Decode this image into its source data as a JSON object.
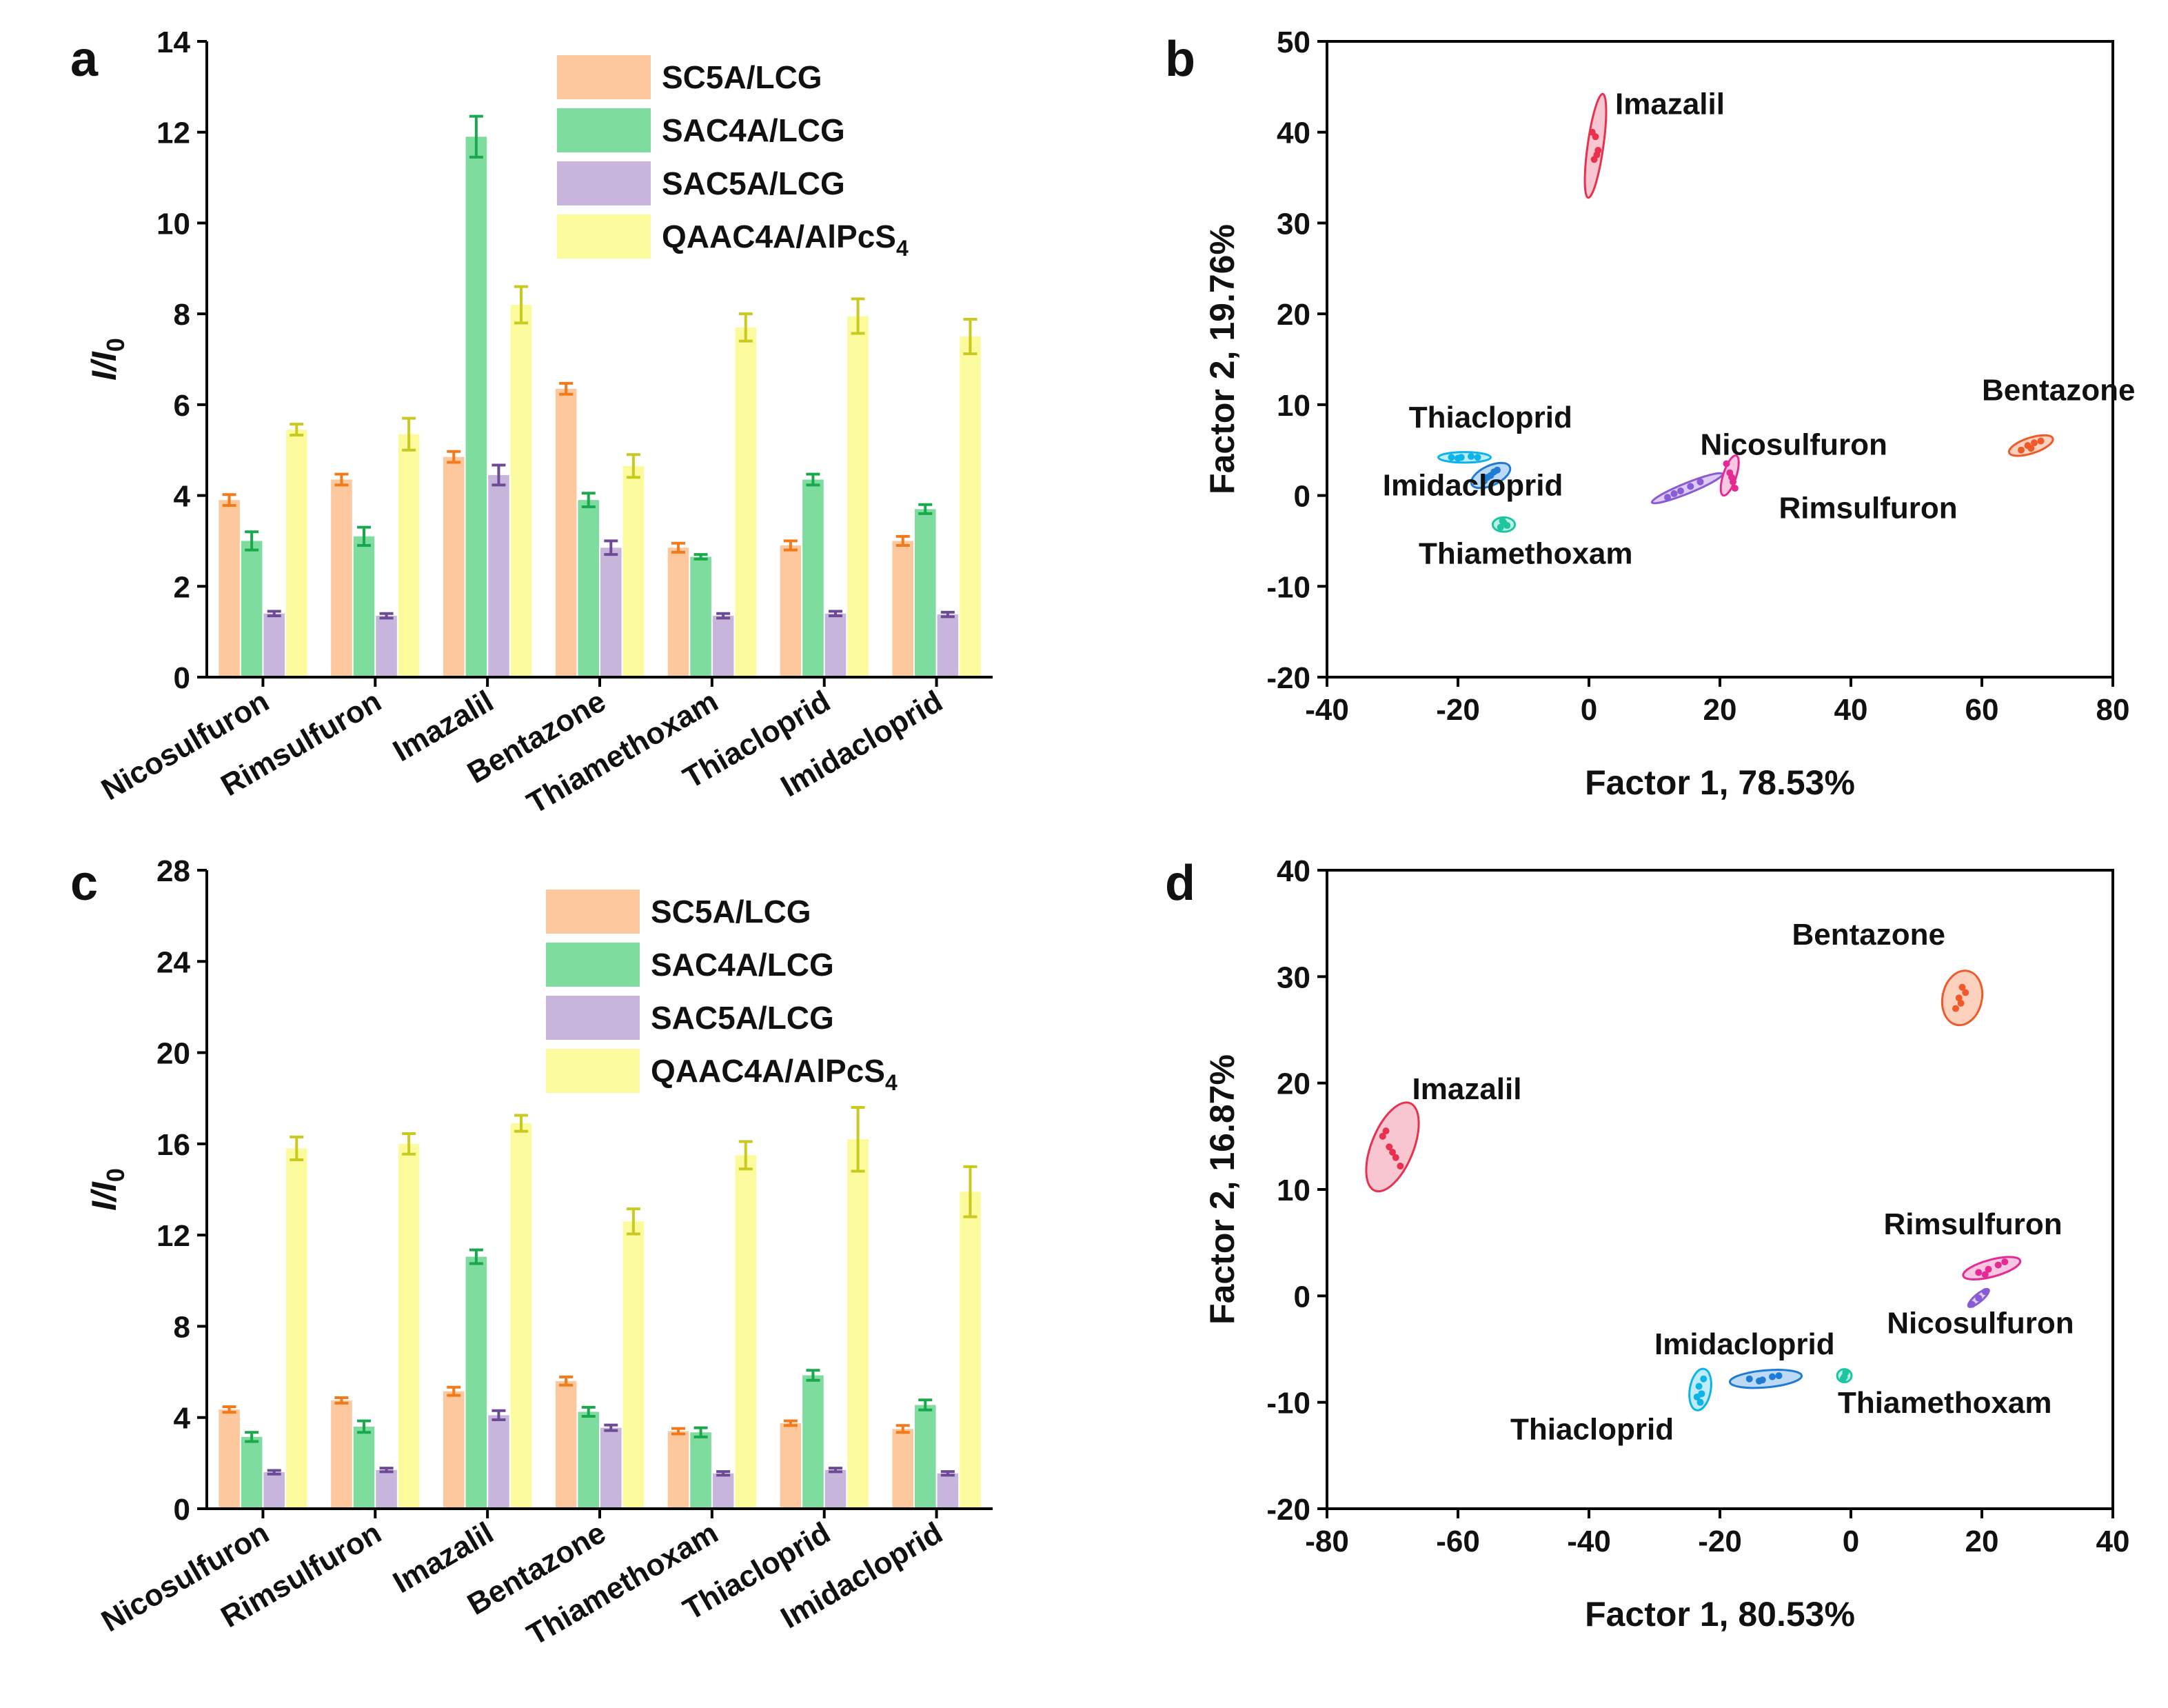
{
  "chart_data": [
    {
      "panel": "a",
      "type": "bar",
      "title": "",
      "xlabel": "",
      "ylabel": "I/I0",
      "ylim": [
        0,
        14
      ],
      "yticks": [
        0,
        2,
        4,
        6,
        8,
        10,
        12,
        14
      ],
      "categories": [
        "Nicosulfuron",
        "Rimsulfuron",
        "Imazalil",
        "Bentazone",
        "Thiamethoxam",
        "Thiacloprid",
        "Imidacloprid"
      ],
      "legend_position": "top-right",
      "series": [
        {
          "name": "SC5A/LCG",
          "sub": "",
          "color": "#FDC89D",
          "err_color": "#F27A1A",
          "values": [
            3.9,
            4.35,
            4.85,
            6.35,
            2.85,
            2.9,
            3.0
          ],
          "errors": [
            0.12,
            0.12,
            0.12,
            0.12,
            0.1,
            0.1,
            0.1
          ]
        },
        {
          "name": "SAC4A/LCG",
          "sub": "",
          "color": "#7EDC9F",
          "err_color": "#1AA84C",
          "values": [
            3.0,
            3.1,
            11.9,
            3.9,
            2.65,
            4.35,
            3.7
          ],
          "errors": [
            0.2,
            0.2,
            0.45,
            0.15,
            0.05,
            0.12,
            0.1
          ]
        },
        {
          "name": "SAC5A/LCG",
          "sub": "",
          "color": "#C8B5DC",
          "err_color": "#6D4A95",
          "values": [
            1.4,
            1.35,
            4.45,
            2.85,
            1.35,
            1.4,
            1.38
          ],
          "errors": [
            0.05,
            0.05,
            0.22,
            0.15,
            0.05,
            0.05,
            0.05
          ]
        },
        {
          "name": "QAAC4A/AlPcS",
          "sub": "4",
          "color": "#FBFB9E",
          "err_color": "#C9C91E",
          "values": [
            5.45,
            5.35,
            8.2,
            4.65,
            7.7,
            7.95,
            7.5
          ],
          "errors": [
            0.12,
            0.35,
            0.4,
            0.25,
            0.3,
            0.38,
            0.38
          ]
        }
      ]
    },
    {
      "panel": "b",
      "type": "scatter",
      "title": "",
      "xlabel": "Factor 1, 78.53%",
      "ylabel": "Factor 2, 19.76%",
      "xlim": [
        -40,
        80
      ],
      "ylim": [
        -20,
        50
      ],
      "xticks": [
        -40,
        -20,
        0,
        20,
        40,
        60,
        80
      ],
      "yticks": [
        -20,
        -10,
        0,
        10,
        20,
        30,
        40,
        50
      ],
      "groups": [
        {
          "name": "Imazalil",
          "color": "#E8304F",
          "fill": "#F5B3C0",
          "cx": 1,
          "cy": 38.5,
          "rx": 8,
          "ry": 1.2,
          "angle": 82,
          "points": [
            [
              0.5,
              40.0
            ],
            [
              1.0,
              39.5
            ],
            [
              1.2,
              37.5
            ],
            [
              0.8,
              37.0
            ],
            [
              1.4,
              38.0
            ]
          ],
          "label_x": 4,
          "label_y": 42
        },
        {
          "name": "Bentazone",
          "color": "#F0592A",
          "fill": "#FBC3A8",
          "cx": 67.5,
          "cy": 5.5,
          "rx": 3.5,
          "ry": 1.2,
          "angle": 18,
          "points": [
            [
              66.0,
              5.0
            ],
            [
              67.0,
              5.5
            ],
            [
              68.0,
              5.8
            ],
            [
              67.5,
              5.2
            ],
            [
              69.0,
              6.0
            ]
          ],
          "label_x": 60,
          "label_y": 10.5
        },
        {
          "name": "Thiacloprid",
          "color": "#0EB3E8",
          "fill": "#A9E6F8",
          "cx": -19,
          "cy": 4.2,
          "rx": 4,
          "ry": 0.8,
          "angle": 0,
          "points": [
            [
              -21.0,
              4.2
            ],
            [
              -19.5,
              4.2
            ],
            [
              -18.0,
              4.3
            ],
            [
              -20.0,
              4.1
            ],
            [
              -17.0,
              4.2
            ]
          ],
          "label_x": -27.5,
          "label_y": 7.5
        },
        {
          "name": "Imidacloprid",
          "color": "#1E7BD6",
          "fill": "#A5CDF2",
          "cx": -15,
          "cy": 2.2,
          "rx": 3.2,
          "ry": 1.5,
          "angle": 25,
          "points": [
            [
              -16.0,
              1.6
            ],
            [
              -15.0,
              2.2
            ],
            [
              -14.5,
              2.6
            ],
            [
              -15.5,
              2.0
            ],
            [
              -14.0,
              2.8
            ]
          ],
          "label_x": -31.5,
          "label_y": 0
        },
        {
          "name": "Thiamethoxam",
          "color": "#1BC6A0",
          "fill": "#A8EBDB",
          "cx": -13,
          "cy": -3.2,
          "rx": 1.7,
          "ry": 1.1,
          "angle": 0,
          "points": [
            [
              -13.5,
              -3.5
            ],
            [
              -13.0,
              -3.0
            ],
            [
              -12.5,
              -3.3
            ],
            [
              -13.2,
              -2.8
            ]
          ],
          "label_x": -26,
          "label_y": -7.5
        },
        {
          "name": "Nicosulfuron",
          "color": "#8A5BD6",
          "fill": "#CFB9F2",
          "cx": 15,
          "cy": 0.8,
          "rx": 5.8,
          "ry": 0.8,
          "angle": 22,
          "points": [
            [
              12.0,
              -0.2
            ],
            [
              14.0,
              0.5
            ],
            [
              15.5,
              1.0
            ],
            [
              17.0,
              1.5
            ],
            [
              13.0,
              0.2
            ]
          ],
          "label_x": 17,
          "label_y": 4.5
        },
        {
          "name": "Rimsulfuron",
          "color": "#E52A93",
          "fill": "#F7B4D8",
          "cx": 21.5,
          "cy": 2.2,
          "rx": 3.2,
          "ry": 1.0,
          "angle": 72,
          "points": [
            [
              21.0,
              3.5
            ],
            [
              21.5,
              2.5
            ],
            [
              22.0,
              1.5
            ],
            [
              21.8,
              2.0
            ],
            [
              22.3,
              0.8
            ]
          ],
          "label_x": 29,
          "label_y": -2.5
        }
      ]
    },
    {
      "panel": "c",
      "type": "bar",
      "title": "",
      "xlabel": "",
      "ylabel": "I/I0",
      "ylim": [
        0,
        28
      ],
      "yticks": [
        0,
        4,
        8,
        12,
        16,
        20,
        24,
        28
      ],
      "categories": [
        "Nicosulfuron",
        "Rimsulfuron",
        "Imazalil",
        "Bentazone",
        "Thiamethoxam",
        "Thiacloprid",
        "Imidacloprid"
      ],
      "legend_position": "top-right",
      "series": [
        {
          "name": "SC5A/LCG",
          "sub": "",
          "color": "#FDC89D",
          "err_color": "#F27A1A",
          "values": [
            4.35,
            4.75,
            5.15,
            5.6,
            3.4,
            3.75,
            3.5
          ],
          "errors": [
            0.12,
            0.12,
            0.18,
            0.18,
            0.12,
            0.1,
            0.15
          ]
        },
        {
          "name": "SAC4A/LCG",
          "sub": "",
          "color": "#7EDC9F",
          "err_color": "#1AA84C",
          "values": [
            3.15,
            3.6,
            11.05,
            4.25,
            3.35,
            5.85,
            4.55
          ],
          "errors": [
            0.2,
            0.25,
            0.3,
            0.2,
            0.2,
            0.22,
            0.22
          ]
        },
        {
          "name": "SAC5A/LCG",
          "sub": "",
          "color": "#C8B5DC",
          "err_color": "#6D4A95",
          "values": [
            1.6,
            1.7,
            4.1,
            3.55,
            1.55,
            1.7,
            1.55
          ],
          "errors": [
            0.08,
            0.08,
            0.2,
            0.12,
            0.08,
            0.08,
            0.08
          ]
        },
        {
          "name": "QAAC4A/AlPcS",
          "sub": "4",
          "color": "#FBFB9E",
          "err_color": "#C9C91E",
          "values": [
            15.8,
            16.0,
            16.9,
            12.6,
            15.5,
            16.2,
            13.9
          ],
          "errors": [
            0.5,
            0.45,
            0.35,
            0.55,
            0.6,
            1.4,
            1.1
          ]
        }
      ]
    },
    {
      "panel": "d",
      "type": "scatter",
      "title": "",
      "xlabel": "Factor 1, 80.53%",
      "ylabel": "Factor 2, 16.87%",
      "xlim": [
        -80,
        40
      ],
      "ylim": [
        -20,
        40
      ],
      "xticks": [
        -80,
        -60,
        -40,
        -20,
        0,
        20,
        40
      ],
      "yticks": [
        -20,
        -10,
        0,
        10,
        20,
        30,
        40
      ],
      "groups": [
        {
          "name": "Bentazone",
          "color": "#F0592A",
          "fill": "#FBC3A8",
          "cx": 17,
          "cy": 28,
          "rx": 4.2,
          "ry": 3.0,
          "angle": 78,
          "points": [
            [
              16.0,
              27.0
            ],
            [
              16.5,
              28.0
            ],
            [
              17.0,
              29.0
            ],
            [
              17.5,
              28.5
            ],
            [
              16.8,
              27.5
            ]
          ],
          "label_x": -9,
          "label_y": 33
        },
        {
          "name": "Imazalil",
          "color": "#E8304F",
          "fill": "#F5B3C0",
          "cx": -70,
          "cy": 14,
          "rx": 7.2,
          "ry": 3.2,
          "angle": 68,
          "points": [
            [
              -71.0,
              15.5
            ],
            [
              -70.5,
              14.0
            ],
            [
              -69.5,
              13.0
            ],
            [
              -68.8,
              12.2
            ],
            [
              -71.5,
              15.0
            ],
            [
              -70.0,
              13.5
            ]
          ],
          "label_x": -67,
          "label_y": 18.5
        },
        {
          "name": "Rimsulfuron",
          "color": "#E52A93",
          "fill": "#F7B4D8",
          "cx": 21.5,
          "cy": 2.6,
          "rx": 4.5,
          "ry": 1.3,
          "angle": 15,
          "points": [
            [
              19.5,
              2.2
            ],
            [
              21.0,
              2.5
            ],
            [
              22.5,
              2.9
            ],
            [
              23.5,
              3.2
            ],
            [
              20.5,
              2.0
            ]
          ],
          "label_x": 5,
          "label_y": 5.8
        },
        {
          "name": "Nicosulfuron",
          "color": "#8A5BD6",
          "fill": "#CFB9F2",
          "cx": 19.5,
          "cy": -0.2,
          "rx": 2.0,
          "ry": 0.6,
          "angle": 40,
          "points": [
            [
              18.5,
              -0.8
            ],
            [
              19.5,
              -0.2
            ],
            [
              20.5,
              0.4
            ]
          ],
          "label_x": 5.5,
          "label_y": -3.5
        },
        {
          "name": "Imidacloprid",
          "color": "#1E7BD6",
          "fill": "#A5CDF2",
          "cx": -13,
          "cy": -7.8,
          "rx": 5.5,
          "ry": 1.3,
          "angle": 5,
          "points": [
            [
              -15.5,
              -7.8
            ],
            [
              -13.5,
              -7.9
            ],
            [
              -12.0,
              -7.6
            ],
            [
              -11.0,
              -7.5
            ],
            [
              -14.0,
              -8.0
            ]
          ],
          "label_x": -30,
          "label_y": -5.5
        },
        {
          "name": "Thiacloprid",
          "color": "#0EB3E8",
          "fill": "#A9E6F8",
          "cx": -23,
          "cy": -8.8,
          "rx": 3.2,
          "ry": 1.6,
          "angle": 80,
          "points": [
            [
              -23.0,
              -10.0
            ],
            [
              -22.8,
              -9.2
            ],
            [
              -23.2,
              -8.5
            ],
            [
              -22.5,
              -7.8
            ],
            [
              -23.5,
              -9.5
            ]
          ],
          "label_x": -52,
          "label_y": -13.5
        },
        {
          "name": "Thiamethoxam",
          "color": "#1BC6A0",
          "fill": "#A8EBDB",
          "cx": -1,
          "cy": -7.5,
          "rx": 1.1,
          "ry": 1.0,
          "angle": 0,
          "points": [
            [
              -1.2,
              -7.8
            ],
            [
              -0.8,
              -7.2
            ],
            [
              -1.0,
              -7.6
            ]
          ],
          "label_x": -2,
          "label_y": -11
        }
      ]
    }
  ]
}
